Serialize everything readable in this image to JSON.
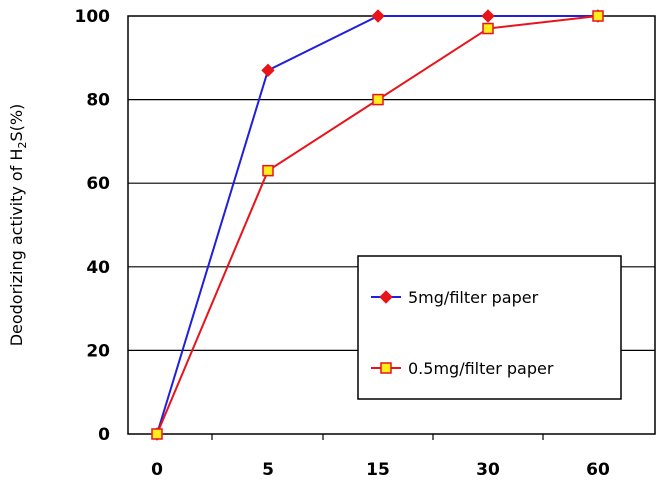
{
  "chart_data": {
    "type": "line",
    "categories": [
      "0",
      "5",
      "15",
      "30",
      "60"
    ],
    "ylim": [
      0,
      100
    ],
    "yticks": [
      0,
      20,
      40,
      60,
      80,
      100
    ],
    "ylabel": {
      "main": "Deodorizing activity of H",
      "sub": "2",
      "rest": "S(%)"
    },
    "xlabel": "",
    "grid": "horizontal",
    "legend_position": "lower-right",
    "series": [
      {
        "name": "5mg/filter paper",
        "values": [
          0,
          87,
          100,
          100,
          100
        ],
        "color": "#1f1fdc",
        "marker": "diamond",
        "marker_fill": "#e8141b"
      },
      {
        "name": "0.5mg/filter paper",
        "values": [
          0,
          63,
          80,
          97,
          100
        ],
        "color": "#e8141b",
        "marker": "square",
        "marker_fill": "#ffee1a"
      }
    ]
  }
}
